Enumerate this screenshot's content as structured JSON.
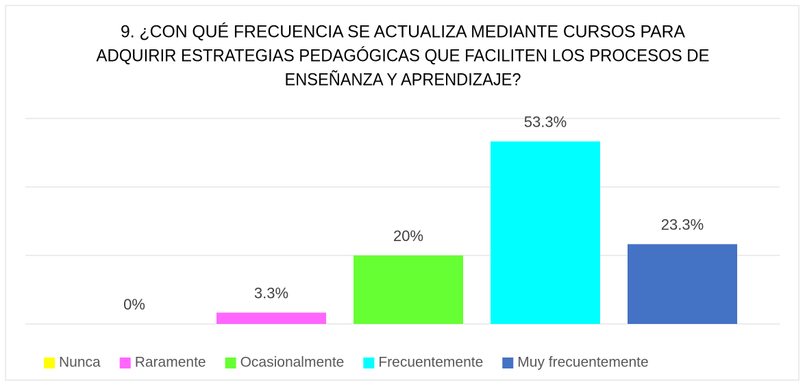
{
  "chart_data": {
    "type": "bar",
    "title": [
      "9. ¿CON QUÉ FRECUENCIA SE ACTUALIZA MEDIANTE CURSOS PARA",
      "ADQUIRIR ESTRATEGIAS PEDAGÓGICAS QUE FACILITEN LOS PROCESOS DE",
      "ENSEÑANZA Y APRENDIZAJE?"
    ],
    "categories": [
      "Nunca",
      "Raramente",
      "Ocasionalmente",
      "Frecuentemente",
      "Muy frecuentemente"
    ],
    "values": [
      0,
      3.3,
      20,
      53.3,
      23.3
    ],
    "value_labels": [
      "0%",
      "3.3%",
      "20%",
      "53.3%",
      "23.3%"
    ],
    "colors": [
      "#ffff00",
      "#ff66ff",
      "#66ff33",
      "#00ffff",
      "#4472c4"
    ],
    "ylim": [
      0,
      60
    ],
    "yticks": [
      0,
      20,
      40,
      60
    ],
    "grid": true,
    "legend": "bottom"
  }
}
